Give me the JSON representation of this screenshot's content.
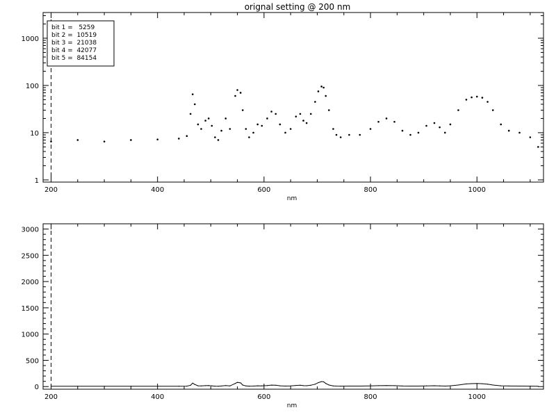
{
  "title": "orignal setting @ 200 nm",
  "chart_data": [
    {
      "type": "scatter",
      "title": "orignal setting @ 200 nm",
      "xlabel": "nm",
      "ylabel": "",
      "xlim": [
        185,
        1125
      ],
      "ylim": [
        0.9,
        3500
      ],
      "yscale": "log",
      "xticks": [
        200,
        400,
        600,
        800,
        1000
      ],
      "yticks": [
        1,
        10,
        100,
        1000
      ],
      "grid": false,
      "marker_line_x": 200,
      "legend_position": "top-left",
      "legend": [
        "bit 1 =   5259",
        "bit 2 =  10519",
        "bit 3 =  21038",
        "bit 4 =  42077",
        "bit 5 =  84154"
      ],
      "series": [
        {
          "x": [
            200,
            250,
            300,
            350,
            400,
            440,
            455,
            462,
            466,
            470,
            476,
            482,
            490,
            496,
            502,
            508,
            514,
            520,
            528,
            536,
            546,
            550,
            556,
            560,
            566,
            572,
            580,
            588,
            596,
            606,
            614,
            622,
            630,
            640,
            650,
            660,
            668,
            674,
            680,
            688,
            696,
            702,
            708,
            712,
            716,
            722,
            730,
            736,
            744,
            760,
            780,
            800,
            815,
            830,
            845,
            860,
            875,
            890,
            905,
            920,
            930,
            940,
            950,
            965,
            980,
            990,
            1000,
            1010,
            1020,
            1030,
            1045,
            1060,
            1080,
            1100,
            1115
          ],
          "y": [
            6.5,
            7,
            6.5,
            7,
            7.2,
            7.5,
            8.5,
            25,
            65,
            40,
            15,
            12,
            18,
            20,
            14,
            8,
            7,
            11,
            20,
            12,
            60,
            80,
            70,
            30,
            12,
            8,
            10,
            15,
            14,
            20,
            28,
            25,
            15,
            10,
            12,
            22,
            25,
            18,
            16,
            25,
            45,
            75,
            95,
            90,
            60,
            30,
            12,
            9,
            8,
            9,
            9,
            12,
            17,
            20,
            17,
            11,
            9,
            10,
            14,
            16,
            13,
            10,
            15,
            30,
            50,
            56,
            58,
            55,
            45,
            30,
            15,
            11,
            10,
            8,
            5
          ]
        }
      ]
    },
    {
      "type": "line",
      "title": "",
      "xlabel": "nm",
      "ylabel": "",
      "xlim": [
        185,
        1125
      ],
      "ylim": [
        -50,
        3100
      ],
      "yscale": "linear",
      "xticks": [
        200,
        400,
        600,
        800,
        1000
      ],
      "yticks": [
        0,
        500,
        1000,
        1500,
        2000,
        2500,
        3000
      ],
      "grid": false,
      "marker_line_x": 200,
      "series": [
        {
          "x": [
            200,
            250,
            300,
            350,
            400,
            440,
            455,
            462,
            466,
            470,
            476,
            482,
            490,
            496,
            502,
            508,
            514,
            520,
            528,
            536,
            546,
            550,
            556,
            560,
            566,
            572,
            580,
            588,
            596,
            606,
            614,
            622,
            630,
            640,
            650,
            660,
            668,
            674,
            680,
            688,
            696,
            702,
            708,
            712,
            716,
            722,
            730,
            736,
            744,
            760,
            780,
            800,
            815,
            830,
            845,
            860,
            875,
            890,
            905,
            920,
            930,
            940,
            950,
            965,
            980,
            990,
            1000,
            1010,
            1020,
            1030,
            1045,
            1060,
            1080,
            1100,
            1115
          ],
          "y": [
            6.5,
            7,
            6.5,
            7,
            7.2,
            7.5,
            8.5,
            25,
            65,
            40,
            15,
            12,
            18,
            20,
            14,
            8,
            7,
            11,
            20,
            12,
            60,
            80,
            70,
            30,
            12,
            8,
            10,
            15,
            14,
            20,
            28,
            25,
            15,
            10,
            12,
            22,
            25,
            18,
            16,
            25,
            45,
            75,
            95,
            90,
            60,
            30,
            12,
            9,
            8,
            9,
            9,
            12,
            17,
            20,
            17,
            11,
            9,
            10,
            14,
            16,
            13,
            10,
            15,
            30,
            50,
            56,
            58,
            55,
            45,
            30,
            15,
            11,
            10,
            8,
            5
          ]
        }
      ]
    }
  ]
}
